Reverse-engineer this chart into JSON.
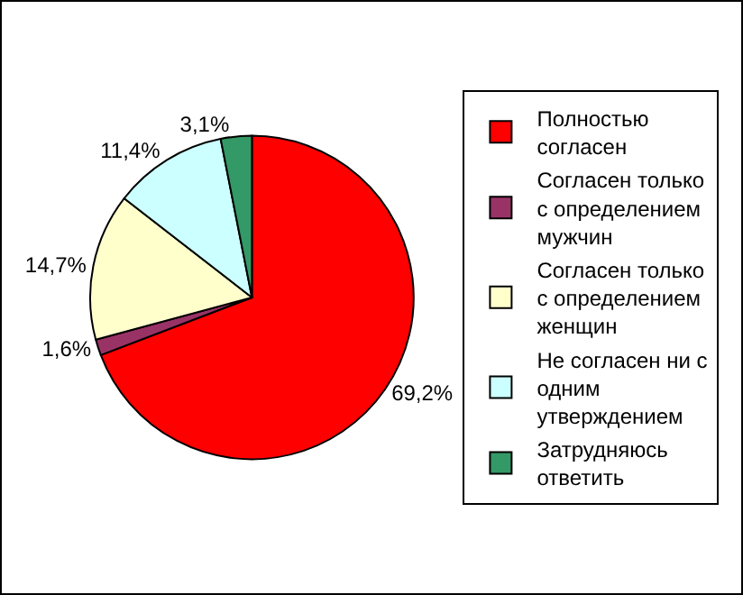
{
  "chart_data": {
    "type": "pie",
    "categories": [
      "Полностью согласен",
      "Согласен только с определением мужчин",
      "Согласен только с определением женщин",
      "Не согласен ни с одним утверждением",
      "Затрудняюсь ответить"
    ],
    "values": [
      69.2,
      1.6,
      14.7,
      11.4,
      3.1
    ],
    "colors": [
      "#ff0000",
      "#993366",
      "#ffffcc",
      "#ccffff",
      "#339966"
    ],
    "value_labels": [
      "69,2%",
      "1,6%",
      "14,7%",
      "11,4%",
      "3,1%"
    ],
    "legend": "right"
  }
}
